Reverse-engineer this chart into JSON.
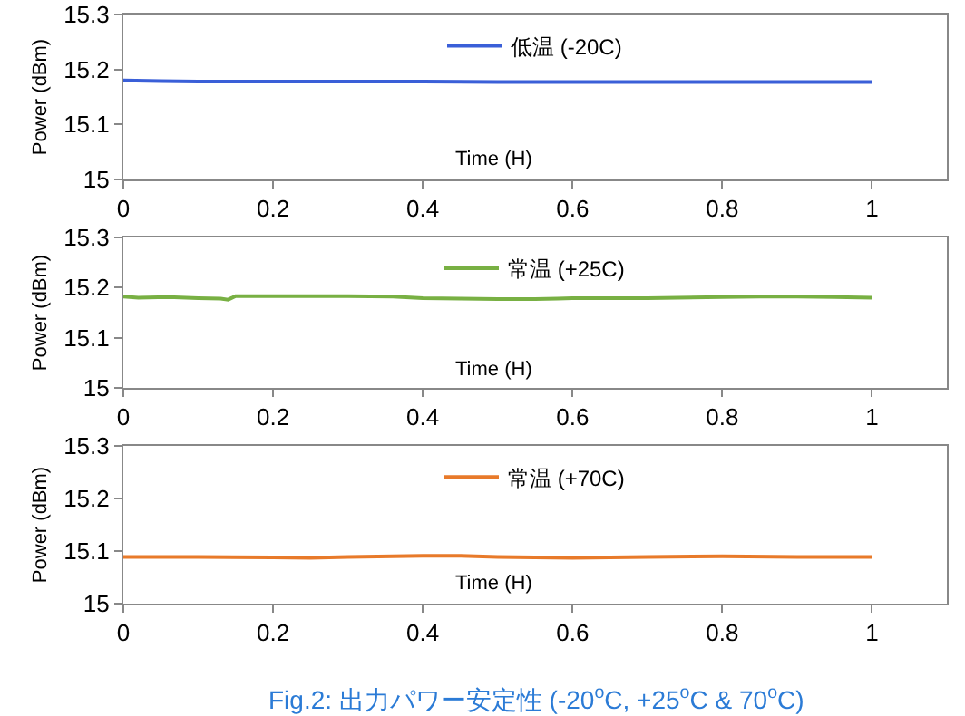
{
  "chart_data": [
    {
      "type": "line",
      "xlabel": "Time (H)",
      "ylabel": "Power (dBm)",
      "xlim": [
        0,
        1.1
      ],
      "xticks": [
        0,
        0.2,
        0.4,
        0.6,
        0.8,
        1
      ],
      "ylim": [
        15,
        15.3
      ],
      "yticks": [
        15,
        15.1,
        15.2,
        15.3
      ],
      "legend": "top",
      "grid": false,
      "series": [
        {
          "name": "低温 (-20C)",
          "color": "#3a5fd8",
          "x": [
            0,
            0.05,
            0.1,
            0.2,
            0.3,
            0.4,
            0.5,
            0.6,
            0.7,
            0.8,
            0.9,
            1
          ],
          "values": [
            15.18,
            15.179,
            15.178,
            15.178,
            15.178,
            15.178,
            15.177,
            15.177,
            15.177,
            15.177,
            15.177,
            15.177
          ]
        }
      ]
    },
    {
      "type": "line",
      "xlabel": "Time (H)",
      "ylabel": "Power (dBm)",
      "xlim": [
        0,
        1.1
      ],
      "xticks": [
        0,
        0.2,
        0.4,
        0.6,
        0.8,
        1
      ],
      "ylim": [
        15,
        15.3
      ],
      "yticks": [
        15,
        15.1,
        15.2,
        15.3
      ],
      "legend": "top",
      "grid": false,
      "series": [
        {
          "name": "常温 (+25C)",
          "color": "#78b043",
          "x": [
            0,
            0.02,
            0.06,
            0.1,
            0.13,
            0.14,
            0.15,
            0.2,
            0.3,
            0.36,
            0.4,
            0.45,
            0.5,
            0.55,
            0.58,
            0.6,
            0.7,
            0.8,
            0.85,
            0.9,
            0.95,
            1
          ],
          "values": [
            15.182,
            15.18,
            15.181,
            15.179,
            15.178,
            15.176,
            15.183,
            15.183,
            15.183,
            15.182,
            15.179,
            15.178,
            15.177,
            15.177,
            15.178,
            15.179,
            15.179,
            15.181,
            15.182,
            15.182,
            15.181,
            15.18
          ]
        }
      ]
    },
    {
      "type": "line",
      "xlabel": "Time (H)",
      "ylabel": "Power (dBm)",
      "xlim": [
        0,
        1.1
      ],
      "xticks": [
        0,
        0.2,
        0.4,
        0.6,
        0.8,
        1
      ],
      "ylim": [
        15,
        15.3
      ],
      "yticks": [
        15,
        15.1,
        15.2,
        15.3
      ],
      "legend": "top",
      "grid": false,
      "annotations": [
        "Fig.2: 出力パワー安定性 (-20$^{o}$C, +25$^{o}$C & 70$^{o}$C)"
      ],
      "series": [
        {
          "name": "常温 (+70C)",
          "color": "#e87a2a",
          "x": [
            0,
            0.1,
            0.2,
            0.25,
            0.3,
            0.4,
            0.45,
            0.5,
            0.6,
            0.7,
            0.8,
            0.9,
            1
          ],
          "values": [
            15.089,
            15.089,
            15.088,
            15.087,
            15.089,
            15.091,
            15.091,
            15.089,
            15.087,
            15.089,
            15.09,
            15.089,
            15.089
          ]
        }
      ]
    }
  ]
}
